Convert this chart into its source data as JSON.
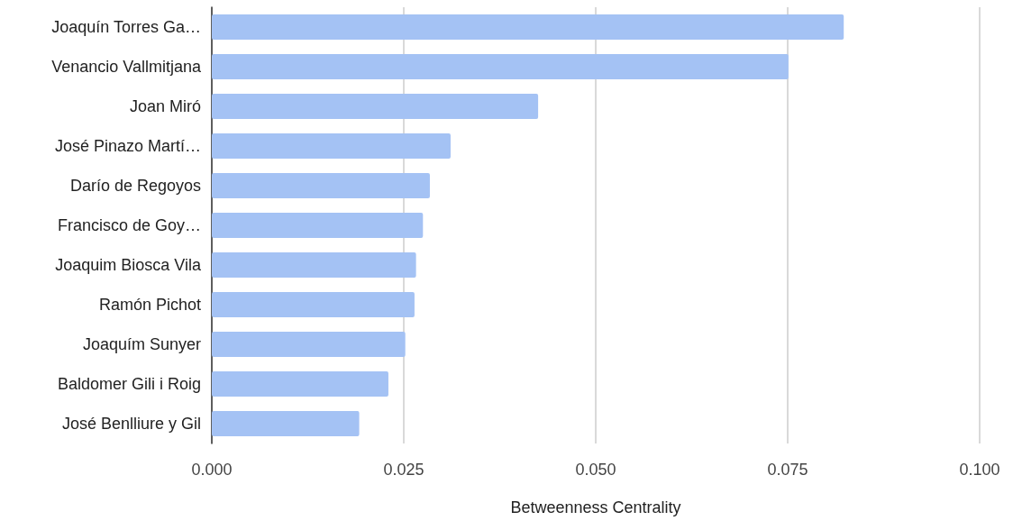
{
  "chart_data": {
    "type": "bar",
    "orientation": "horizontal",
    "xlabel": "Betweenness Centrality",
    "categories": [
      "Joaquín Torres Ga…",
      "Venancio Vallmitjana",
      "Joan Miró",
      "José Pinazo Martí…",
      "Darío de Regoyos",
      "Francisco de Goy…",
      "Joaquim Biosca Vila",
      "Ramón Pichot",
      "Joaquím Sunyer",
      "Baldomer Gili i Roig",
      "José Benlliure y Gil"
    ],
    "values": [
      0.0823,
      0.0751,
      0.0425,
      0.0311,
      0.0284,
      0.0275,
      0.0266,
      0.0264,
      0.0252,
      0.023,
      0.0192
    ],
    "color": "#a4c2f4",
    "xlim": [
      0,
      0.1
    ],
    "xticks": [
      {
        "value": 0,
        "label": "0.000"
      },
      {
        "value": 0.025,
        "label": "0.025"
      },
      {
        "value": 0.05,
        "label": "0.050"
      },
      {
        "value": 0.075,
        "label": "0.075"
      },
      {
        "value": 0.1,
        "label": "0.100"
      }
    ],
    "grid": "x"
  }
}
